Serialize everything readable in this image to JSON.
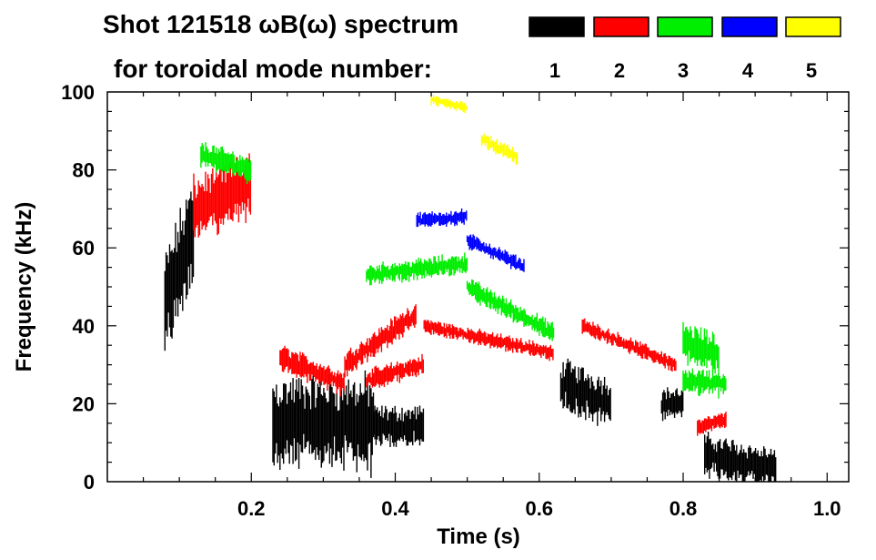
{
  "chart_data": {
    "type": "spectrogram",
    "title_line1": "Shot 121518 ωB(ω) spectrum",
    "title_line2": "for toroidal mode number:",
    "xlabel": "Time (s)",
    "ylabel": "Frequency (kHz)",
    "xlim": [
      0.0,
      1.03
    ],
    "ylim": [
      0,
      100
    ],
    "x_ticks": [
      {
        "value": 0.2,
        "label": "0.2"
      },
      {
        "value": 0.4,
        "label": "0.4"
      },
      {
        "value": 0.6,
        "label": "0.6"
      },
      {
        "value": 0.8,
        "label": "0.8"
      },
      {
        "value": 1.0,
        "label": "1.0"
      }
    ],
    "y_ticks": [
      {
        "value": 0,
        "label": "0"
      },
      {
        "value": 20,
        "label": "20"
      },
      {
        "value": 40,
        "label": "40"
      },
      {
        "value": 60,
        "label": "60"
      },
      {
        "value": 80,
        "label": "80"
      },
      {
        "value": 100,
        "label": "100"
      }
    ],
    "legend": [
      {
        "mode": "1",
        "color": "#000000"
      },
      {
        "mode": "2",
        "color": "#ff0000"
      },
      {
        "mode": "3",
        "color": "#00ee00"
      },
      {
        "mode": "4",
        "color": "#0000ff"
      },
      {
        "mode": "5",
        "color": "#ffff00"
      }
    ],
    "series": [
      {
        "mode": "1",
        "name": "n=1",
        "color": "#000000",
        "bands": [
          {
            "t": [
              0.08,
              0.12
            ],
            "f": [
              45,
              65
            ],
            "w": 20
          },
          {
            "t": [
              0.23,
              0.37
            ],
            "f": [
              15,
              15
            ],
            "w": 18
          },
          {
            "t": [
              0.37,
              0.44
            ],
            "f": [
              14,
              14
            ],
            "w": 8
          },
          {
            "t": [
              0.63,
              0.7
            ],
            "f": [
              25,
              20
            ],
            "w": 10
          },
          {
            "t": [
              0.77,
              0.8
            ],
            "f": [
              20,
              20
            ],
            "w": 6
          },
          {
            "t": [
              0.83,
              0.93
            ],
            "f": [
              7,
              3
            ],
            "w": 8
          }
        ]
      },
      {
        "mode": "2",
        "name": "n=2",
        "color": "#ff0000",
        "bands": [
          {
            "t": [
              0.12,
              0.2
            ],
            "f": [
              70,
              76
            ],
            "w": 12
          },
          {
            "t": [
              0.24,
              0.33
            ],
            "f": [
              32,
              25
            ],
            "w": 5
          },
          {
            "t": [
              0.33,
              0.43
            ],
            "f": [
              30,
              43
            ],
            "w": 5
          },
          {
            "t": [
              0.36,
              0.44
            ],
            "f": [
              26,
              30
            ],
            "w": 4
          },
          {
            "t": [
              0.44,
              0.62
            ],
            "f": [
              40,
              33
            ],
            "w": 3
          },
          {
            "t": [
              0.66,
              0.79
            ],
            "f": [
              40,
              30
            ],
            "w": 3
          },
          {
            "t": [
              0.82,
              0.86
            ],
            "f": [
              14,
              16
            ],
            "w": 3
          }
        ]
      },
      {
        "mode": "3",
        "name": "n=3",
        "color": "#00ee00",
        "bands": [
          {
            "t": [
              0.13,
              0.2
            ],
            "f": [
              84,
              80
            ],
            "w": 5
          },
          {
            "t": [
              0.36,
              0.5
            ],
            "f": [
              53,
              56
            ],
            "w": 4
          },
          {
            "t": [
              0.5,
              0.62
            ],
            "f": [
              50,
              38
            ],
            "w": 4
          },
          {
            "t": [
              0.8,
              0.85
            ],
            "f": [
              36,
              32
            ],
            "w": 8
          },
          {
            "t": [
              0.8,
              0.86
            ],
            "f": [
              26,
              25
            ],
            "w": 5
          }
        ]
      },
      {
        "mode": "4",
        "name": "n=4",
        "color": "#0000ff",
        "bands": [
          {
            "t": [
              0.43,
              0.5
            ],
            "f": [
              67,
              68
            ],
            "w": 3
          },
          {
            "t": [
              0.5,
              0.58
            ],
            "f": [
              62,
              55
            ],
            "w": 3
          }
        ]
      },
      {
        "mode": "5",
        "name": "n=5",
        "color": "#ffff00",
        "bands": [
          {
            "t": [
              0.52,
              0.57
            ],
            "f": [
              88,
              83
            ],
            "w": 3
          },
          {
            "t": [
              0.45,
              0.5
            ],
            "f": [
              98,
              96
            ],
            "w": 2
          }
        ]
      }
    ]
  }
}
